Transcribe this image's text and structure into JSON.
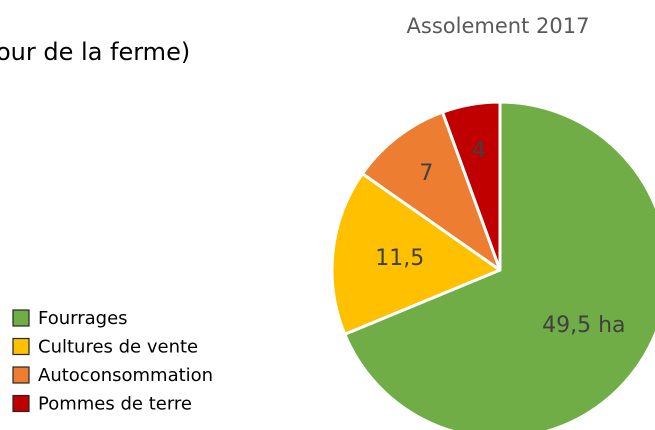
{
  "chart_data": {
    "type": "pie",
    "title": "Assolement 2017",
    "annotation": "our de la ferme)",
    "categories": [
      "Fourrages",
      "Cultures de vente",
      "Autoconsommation",
      "Pommes de terre"
    ],
    "values": [
      49.5,
      11.5,
      7,
      4
    ],
    "value_labels": [
      "49,5 ha",
      "11,5",
      "7",
      "4"
    ],
    "colors": [
      "#70ad47",
      "#ffc000",
      "#ed7d31",
      "#c00000"
    ],
    "legend": "left"
  }
}
